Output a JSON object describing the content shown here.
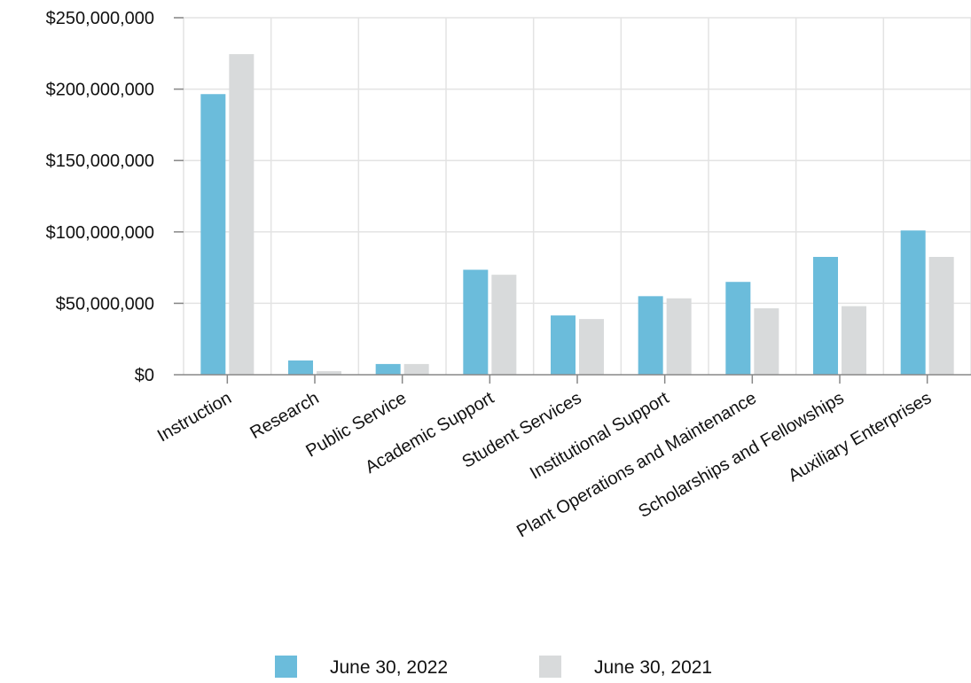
{
  "chart_data": {
    "type": "bar",
    "categories": [
      "Instruction",
      "Research",
      "Public Service",
      "Academic Support",
      "Student Services",
      "Institutional Support",
      "Plant Operations and Maintenance",
      "Scholarships and Fellowships",
      "Auxiliary Enterprises"
    ],
    "series": [
      {
        "name": "June 30, 2022",
        "color": "#6bbcdb",
        "values": [
          196500000,
          10000000,
          7500000,
          73500000,
          41500000,
          55000000,
          65000000,
          82500000,
          101000000
        ]
      },
      {
        "name": "June 30, 2021",
        "color": "#d8dadb",
        "values": [
          224500000,
          2500000,
          7500000,
          70000000,
          39000000,
          53500000,
          46500000,
          48000000,
          82500000
        ]
      }
    ],
    "ylim": [
      0,
      250000000
    ],
    "yticks": [
      0,
      50000000,
      100000000,
      150000000,
      200000000,
      250000000
    ],
    "ytick_labels": [
      "$0",
      "$50,000,000",
      "$100,000,000",
      "$150,000,000",
      "$200,000,000",
      "$250,000,000"
    ],
    "title": "",
    "xlabel": "",
    "ylabel": "",
    "grid": true,
    "legend_position": "bottom-center",
    "x_label_rotation_deg": -30
  }
}
